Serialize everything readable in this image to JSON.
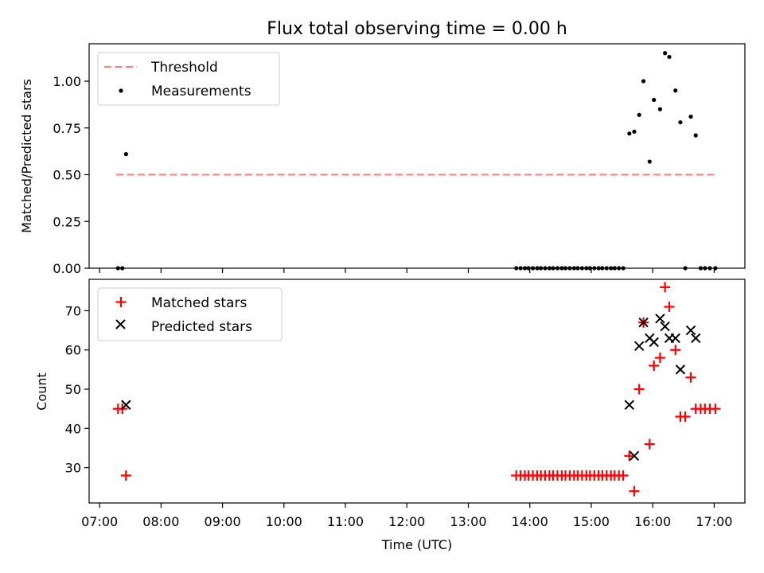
{
  "title": "Flux total observing time = 0.00 h",
  "colors": {
    "threshold": "#ff7f7f",
    "measurement": "#000000",
    "matched": "#ff0000",
    "predicted": "#000000"
  },
  "chart_data": [
    {
      "type": "scatter",
      "ylabel": "Matched/Predicted stars",
      "ylim": [
        0,
        1.2
      ],
      "yticks": [
        0.0,
        0.25,
        0.5,
        0.75,
        1.0
      ],
      "ytick_labels": [
        "0.00",
        "0.25",
        "0.50",
        "0.75",
        "1.00"
      ],
      "legend": {
        "position": "top-left",
        "entries": [
          "Threshold",
          "Measurements"
        ]
      },
      "threshold": {
        "name": "Threshold",
        "value": 0.5,
        "x_range": [
          7.27,
          17.05
        ]
      },
      "series": [
        {
          "name": "Measurements",
          "x": [
            7.3,
            7.37,
            7.43,
            13.78,
            13.85,
            13.92,
            13.98,
            14.05,
            14.12,
            14.18,
            14.25,
            14.32,
            14.38,
            14.45,
            14.52,
            14.58,
            14.65,
            14.72,
            14.78,
            14.85,
            14.92,
            14.98,
            15.05,
            15.12,
            15.18,
            15.25,
            15.32,
            15.38,
            15.45,
            15.52,
            15.62,
            15.7,
            15.78,
            15.85,
            15.95,
            16.02,
            16.12,
            16.2,
            16.27,
            16.37,
            16.45,
            16.53,
            16.62,
            16.7,
            16.78,
            16.85,
            16.93,
            17.02
          ],
          "y": [
            0,
            0,
            0.61,
            0,
            0,
            0,
            0,
            0,
            0,
            0,
            0,
            0,
            0,
            0,
            0,
            0,
            0,
            0,
            0,
            0,
            0,
            0,
            0,
            0,
            0,
            0,
            0,
            0,
            0,
            0,
            0.72,
            0.73,
            0.82,
            1.0,
            0.57,
            0.9,
            0.85,
            1.15,
            1.13,
            0.95,
            0.78,
            0,
            0.81,
            0.71,
            0,
            0,
            0,
            0
          ]
        }
      ]
    },
    {
      "type": "scatter",
      "ylabel": "Count",
      "xlabel": "Time (UTC)",
      "ylim": [
        21,
        78
      ],
      "yticks": [
        30,
        40,
        50,
        60,
        70
      ],
      "xlim": [
        6.83,
        17.5
      ],
      "xticks": [
        7,
        8,
        9,
        10,
        11,
        12,
        13,
        14,
        15,
        16,
        17
      ],
      "xtick_labels": [
        "07:00",
        "08:00",
        "09:00",
        "10:00",
        "11:00",
        "12:00",
        "13:00",
        "14:00",
        "15:00",
        "16:00",
        "17:00"
      ],
      "legend": {
        "position": "top-left",
        "entries": [
          "Matched stars",
          "Predicted stars"
        ]
      },
      "series": [
        {
          "name": "Matched stars",
          "x": [
            7.3,
            7.37,
            7.43,
            13.78,
            13.85,
            13.92,
            13.98,
            14.05,
            14.12,
            14.18,
            14.25,
            14.32,
            14.38,
            14.45,
            14.52,
            14.58,
            14.65,
            14.72,
            14.78,
            14.85,
            14.92,
            14.98,
            15.05,
            15.12,
            15.18,
            15.25,
            15.32,
            15.38,
            15.45,
            15.52,
            15.62,
            15.7,
            15.78,
            15.85,
            15.95,
            16.02,
            16.12,
            16.2,
            16.27,
            16.37,
            16.45,
            16.53,
            16.62,
            16.7,
            16.78,
            16.85,
            16.93,
            17.02
          ],
          "y": [
            45,
            45,
            28,
            28,
            28,
            28,
            28,
            28,
            28,
            28,
            28,
            28,
            28,
            28,
            28,
            28,
            28,
            28,
            28,
            28,
            28,
            28,
            28,
            28,
            28,
            28,
            28,
            28,
            28,
            28,
            33,
            24,
            50,
            67,
            36,
            56,
            58,
            76,
            71,
            60,
            43,
            43,
            53,
            45,
            45,
            45,
            45,
            45
          ]
        },
        {
          "name": "Predicted stars",
          "x": [
            7.43,
            15.62,
            15.7,
            15.78,
            15.85,
            15.95,
            16.02,
            16.12,
            16.2,
            16.27,
            16.37,
            16.45,
            16.62,
            16.7
          ],
          "y": [
            46,
            46,
            33,
            61,
            67,
            63,
            62,
            68,
            66,
            63,
            63,
            55,
            65,
            63
          ]
        }
      ]
    }
  ]
}
